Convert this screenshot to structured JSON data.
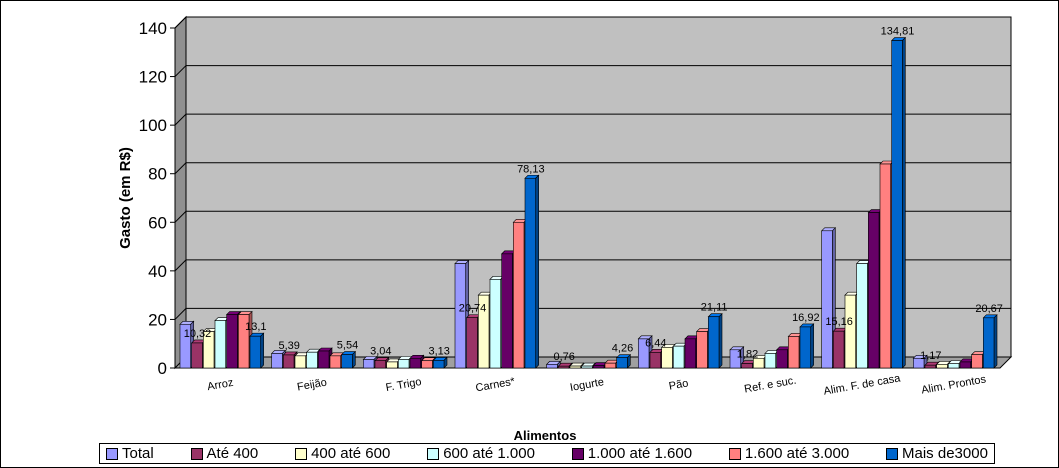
{
  "chart_data": {
    "type": "bar",
    "xlabel": "Alimentos",
    "ylabel": "Gasto (em R$)",
    "ylim": [
      0,
      140
    ],
    "yticks": [
      "0",
      "20",
      "40",
      "60",
      "80",
      "100",
      "120",
      "140"
    ],
    "grid": true,
    "legend_position": "bottom",
    "categories": [
      "Arroz",
      "Feijão",
      "F. Trigo",
      "Carnes*",
      "Iogurte",
      "Pão",
      "Ref. e suc.",
      "Alim. F. de casa",
      "Alim. Prontos"
    ],
    "series": [
      {
        "name": "Total",
        "color": "#9999ff",
        "values": [
          18,
          6,
          3.5,
          43,
          1.5,
          12,
          7.5,
          56.5,
          4
        ]
      },
      {
        "name": "Até 400",
        "color": "#993366",
        "values": [
          10.32,
          5.39,
          3.04,
          20.74,
          0.76,
          6.44,
          1.82,
          15.16,
          1.17
        ]
      },
      {
        "name": "400 até 600",
        "color": "#ffffcc",
        "values": [
          15,
          5,
          2.5,
          30,
          0.8,
          8.5,
          4,
          30,
          1.5
        ]
      },
      {
        "name": "600 até 1.000",
        "color": "#ccffff",
        "values": [
          19.5,
          6.5,
          3.5,
          36.5,
          0.8,
          9,
          6,
          43,
          1.8
        ]
      },
      {
        "name": "1.000 até 1.600",
        "color": "#660066",
        "values": [
          22,
          7,
          4,
          47,
          1,
          12,
          7.5,
          64,
          2.5
        ]
      },
      {
        "name": "1.600 até 3.000",
        "color": "#ff8080",
        "values": [
          22,
          5,
          3,
          60,
          2,
          15,
          13,
          84,
          5.5
        ]
      },
      {
        "name": "Mais de3000",
        "color": "#0066cc",
        "values": [
          13.1,
          5.54,
          3.13,
          78.13,
          4.26,
          21.11,
          16.92,
          134.81,
          20.67
        ]
      }
    ],
    "data_labels": [
      {
        "category": "Arroz",
        "series": "Até 400",
        "text": "10,32"
      },
      {
        "category": "Arroz",
        "series": "Mais de3000",
        "text": "13,1"
      },
      {
        "category": "Feijão",
        "series": "Até 400",
        "text": "5,39"
      },
      {
        "category": "Feijão",
        "series": "Mais de3000",
        "text": "5,54"
      },
      {
        "category": "F. Trigo",
        "series": "Até 400",
        "text": "3,04"
      },
      {
        "category": "F. Trigo",
        "series": "Mais de3000",
        "text": "3,13"
      },
      {
        "category": "Carnes*",
        "series": "Até 400",
        "text": "20,74"
      },
      {
        "category": "Carnes*",
        "series": "Mais de3000",
        "text": "78,13"
      },
      {
        "category": "Iogurte",
        "series": "Até 400",
        "text": "0,76"
      },
      {
        "category": "Iogurte",
        "series": "Mais de3000",
        "text": "4,26"
      },
      {
        "category": "Pão",
        "series": "Até 400",
        "text": "6,44"
      },
      {
        "category": "Pão",
        "series": "Mais de3000",
        "text": "21,11"
      },
      {
        "category": "Ref. e suc.",
        "series": "Até 400",
        "text": "1,82"
      },
      {
        "category": "Ref. e suc.",
        "series": "Mais de3000",
        "text": "16,92"
      },
      {
        "category": "Alim. F. de casa",
        "series": "Até 400",
        "text": "15,16"
      },
      {
        "category": "Alim. F. de casa",
        "series": "Mais de3000",
        "text": "134,81"
      },
      {
        "category": "Alim. Prontos",
        "series": "Até 400",
        "text": "1,17"
      },
      {
        "category": "Alim. Prontos",
        "series": "Mais de3000",
        "text": "20,67"
      }
    ]
  }
}
